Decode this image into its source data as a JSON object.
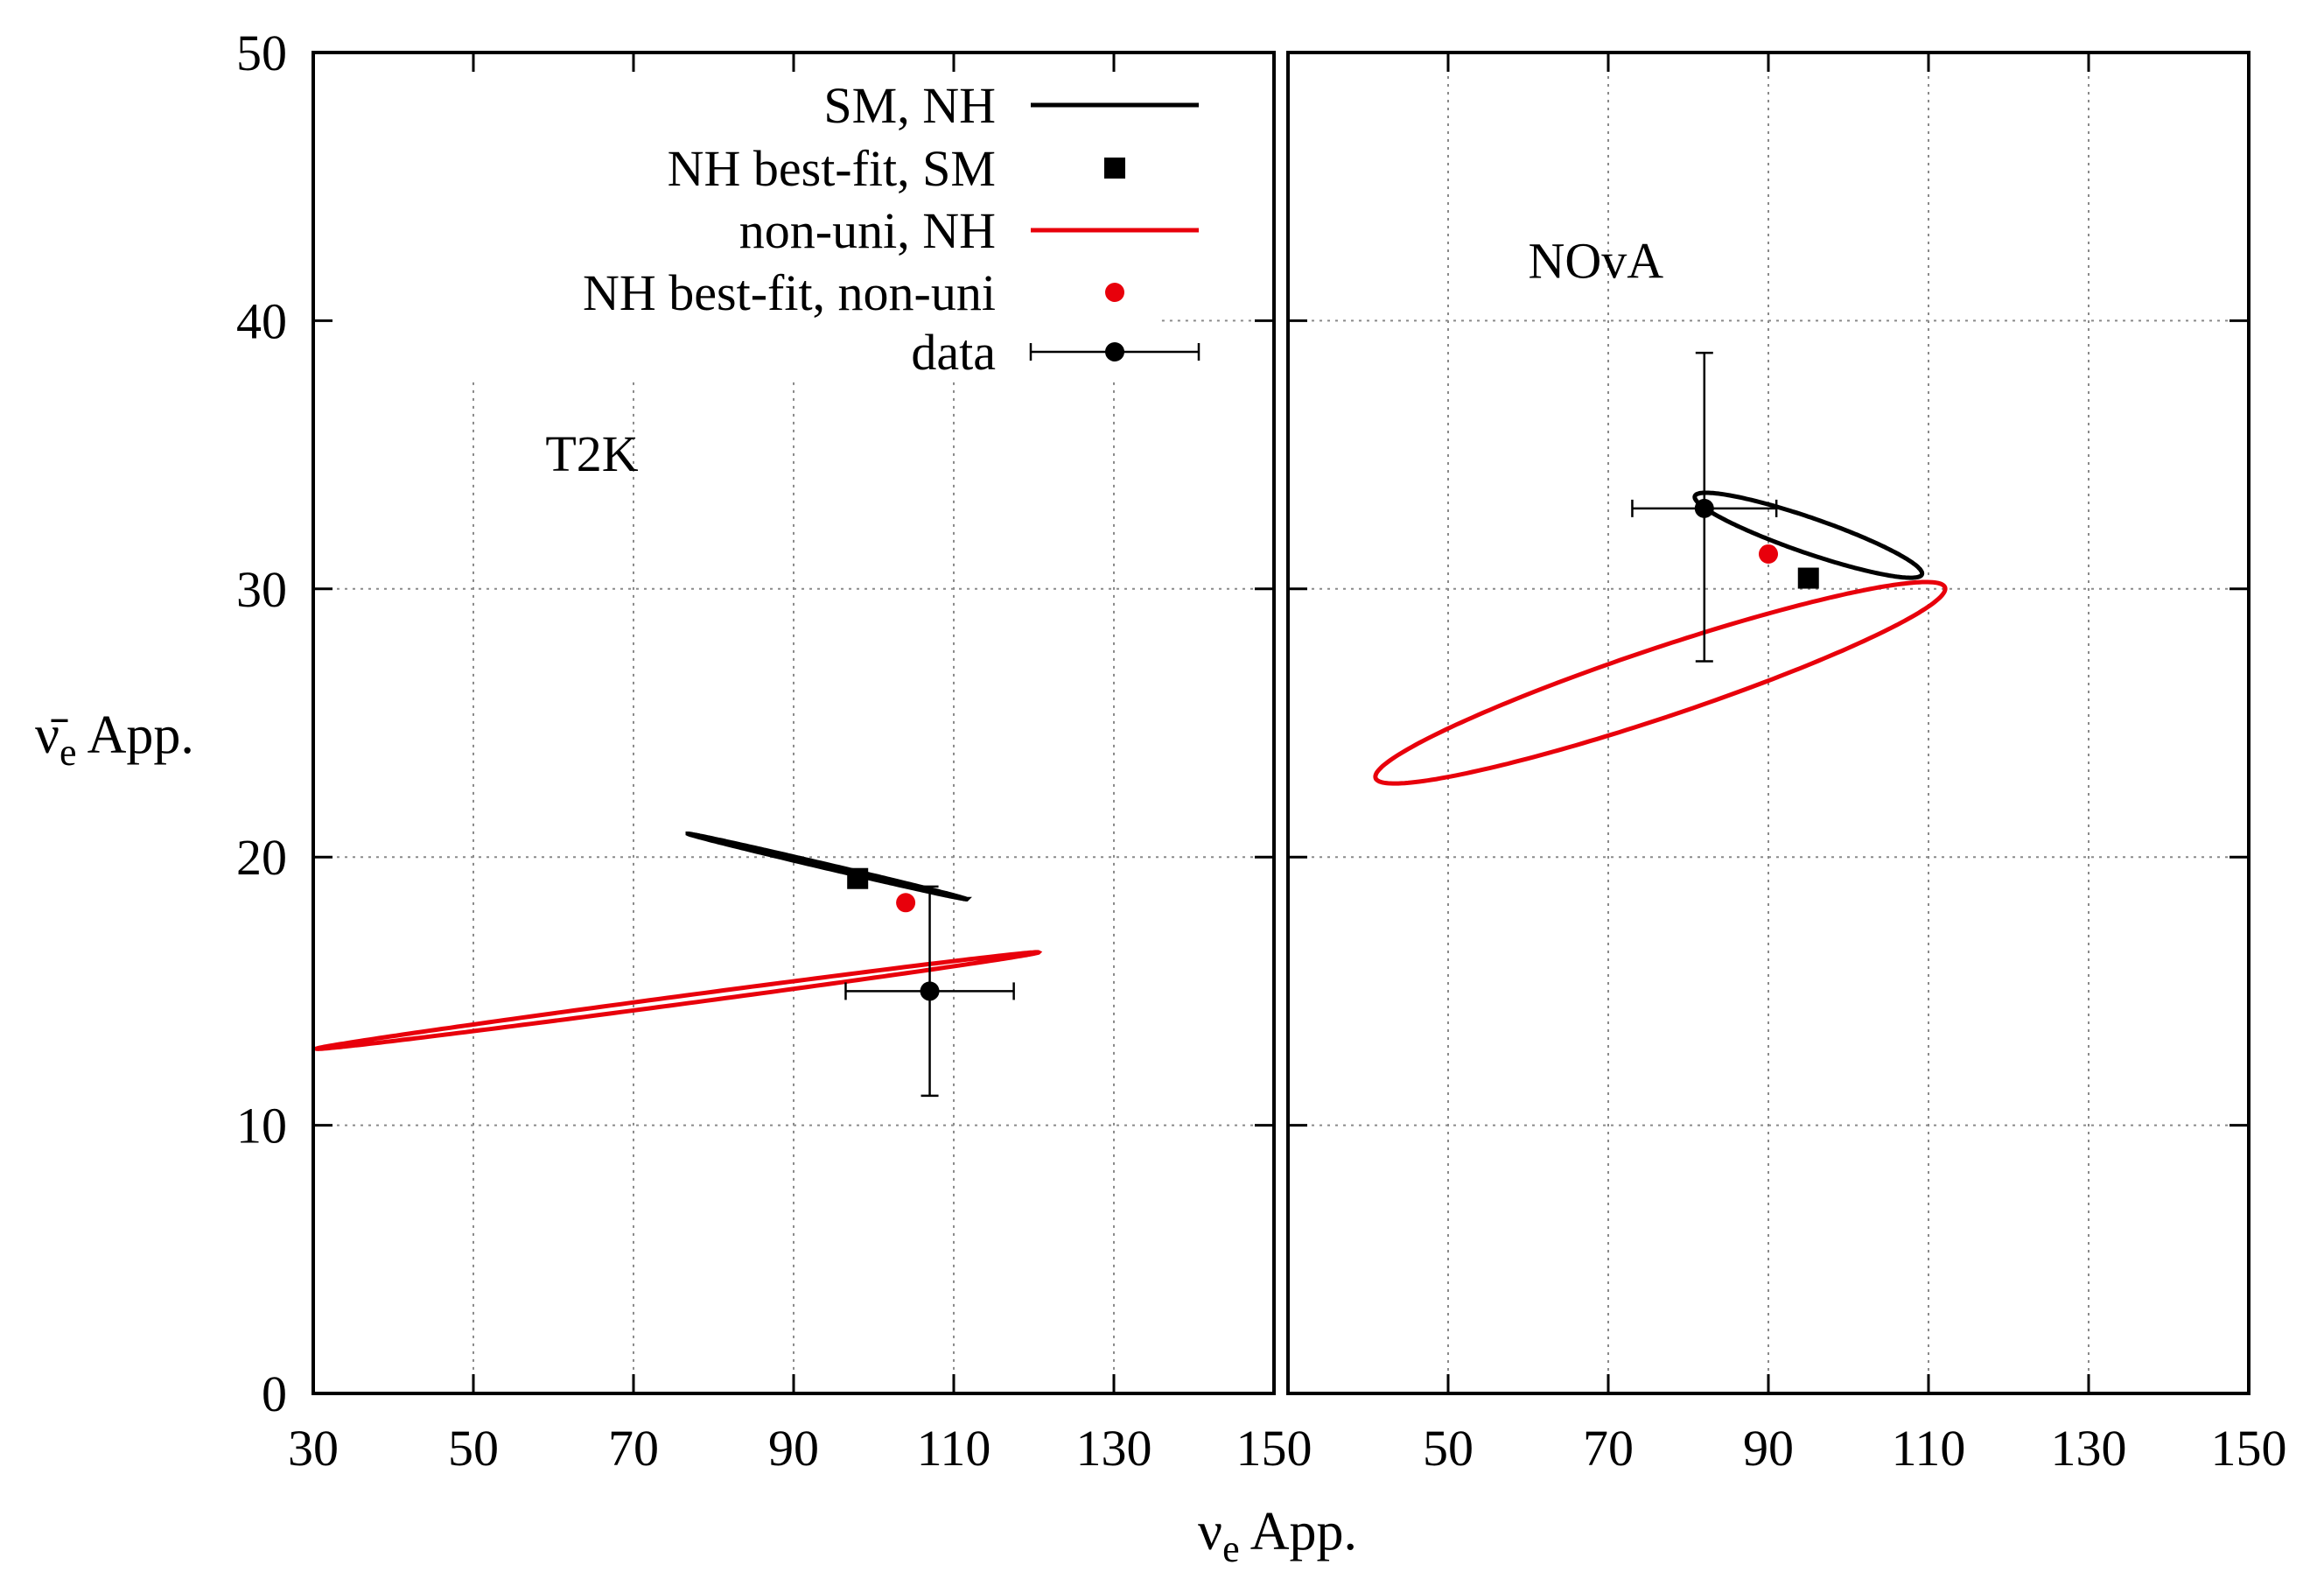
{
  "chart_data": {
    "type": "scatter",
    "ylabel": {
      "main": "ν̄",
      "sub": "e",
      "rest": " App."
    },
    "xlabel": {
      "main": "ν",
      "sub": "e",
      "rest": " App."
    },
    "ylim": [
      0,
      50
    ],
    "yticks": [
      0,
      10,
      20,
      30,
      40,
      50
    ],
    "grid": true,
    "legend_position": "top-left of left panel",
    "legend": [
      {
        "key": "sm",
        "label": "SM, NH",
        "marker": "line",
        "color": "#000000"
      },
      {
        "key": "sm_bf",
        "label": "NH best-fit, SM",
        "marker": "square",
        "color": "#000000"
      },
      {
        "key": "nonuni",
        "label": "non-uni, NH",
        "marker": "line",
        "color": "#e8000b"
      },
      {
        "key": "nonuni_bf",
        "label": "NH best-fit, non-uni",
        "marker": "circle",
        "color": "#e8000b"
      },
      {
        "key": "data",
        "label": "data",
        "marker": "errorbar",
        "color": "#000000"
      }
    ],
    "panels": [
      {
        "name": "T2K",
        "label": "T2K",
        "xlim": [
          30,
          150
        ],
        "xticks": [
          30,
          50,
          70,
          90,
          110,
          130,
          150
        ],
        "xtick_labels": [
          "30",
          "50",
          "70",
          "90",
          "110",
          "130",
          "150"
        ],
        "sm_ellipse": {
          "cx": 94.2,
          "cy": 19.65,
          "rx": 17.9,
          "ry": 0.25,
          "angle_deg": -13.2
        },
        "sm_best_fit": {
          "x": 98,
          "y": 19.2
        },
        "nonuni_ellipse": {
          "cx": 75.5,
          "cy": 14.65,
          "rx": 45.5,
          "ry": 0.5,
          "angle_deg": 7.6
        },
        "nonuni_best_fit": {
          "x": 104,
          "y": 18.3
        },
        "data": {
          "x": 107,
          "y": 15,
          "x_err": [
            96.5,
            117.5
          ],
          "y_err": [
            11.1,
            18.9
          ]
        }
      },
      {
        "name": "NOvA",
        "label": "NOvA",
        "xlim": [
          30,
          150
        ],
        "xticks": [
          50,
          70,
          90,
          110,
          130,
          150
        ],
        "xtick_labels": [
          "50",
          "70",
          "90",
          "110",
          "130",
          "150"
        ],
        "sm_ellipse": {
          "cx": 95,
          "cy": 32,
          "rx": 15.0,
          "ry": 2.2,
          "angle_deg": -19
        },
        "sm_best_fit": {
          "x": 95,
          "y": 30.4
        },
        "nonuni_ellipse": {
          "cx": 76.5,
          "cy": 26.5,
          "rx": 37.5,
          "ry": 4.3,
          "angle_deg": 18.5
        },
        "nonuni_best_fit": {
          "x": 90,
          "y": 31.3
        },
        "data": {
          "x": 82,
          "y": 33,
          "x_err": [
            73,
            91
          ],
          "y_err": [
            27.3,
            38.8
          ]
        }
      }
    ]
  }
}
